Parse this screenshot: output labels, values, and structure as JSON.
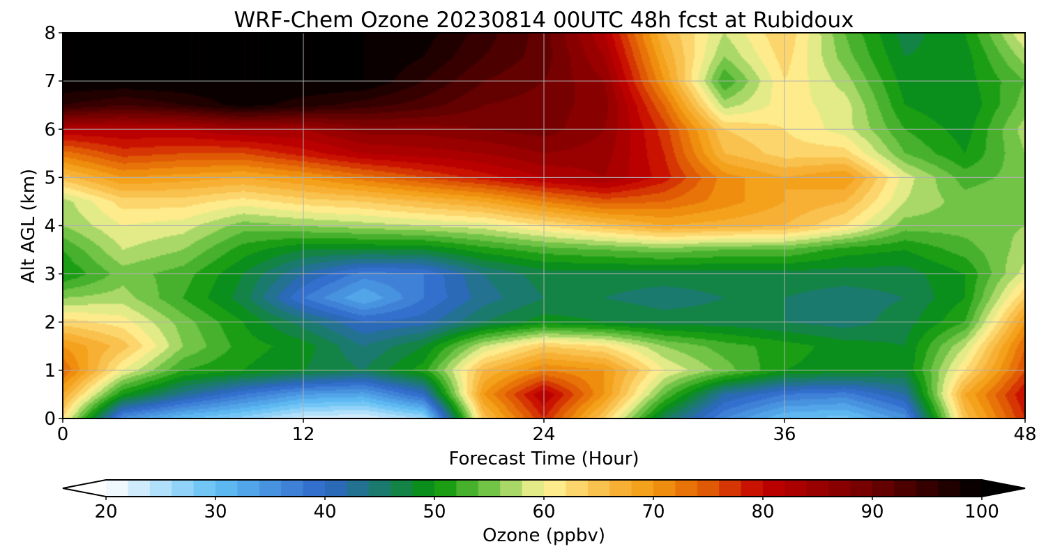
{
  "chart_data": {
    "type": "heatmap",
    "title": "WRF-Chem Ozone  20230814 00UTC 48h fcst at Rubidoux",
    "xlabel": "Forecast Time (Hour)",
    "ylabel": "Alt AGL (km)",
    "xlim": [
      0,
      48
    ],
    "ylim": [
      0,
      8
    ],
    "xticks": [
      0,
      12,
      24,
      36,
      48
    ],
    "yticks": [
      0,
      1,
      2,
      3,
      4,
      5,
      6,
      7,
      8
    ],
    "grid": true,
    "colorbar": {
      "label": "Ozone  (ppbv)",
      "range": [
        20,
        100
      ],
      "ticks": [
        20,
        30,
        40,
        50,
        60,
        70,
        80,
        90,
        100
      ],
      "extend": "both",
      "stops": [
        {
          "v": 20,
          "c": "#ffffff"
        },
        {
          "v": 30,
          "c": "#62c0f5"
        },
        {
          "v": 40,
          "c": "#2e66c8"
        },
        {
          "v": 45,
          "c": "#1b7a6e"
        },
        {
          "v": 50,
          "c": "#079407"
        },
        {
          "v": 55,
          "c": "#72c447"
        },
        {
          "v": 60,
          "c": "#fff59a"
        },
        {
          "v": 66,
          "c": "#f8b73e"
        },
        {
          "v": 70,
          "c": "#f39a10"
        },
        {
          "v": 75,
          "c": "#e05a05"
        },
        {
          "v": 80,
          "c": "#c40000"
        },
        {
          "v": 90,
          "c": "#6e0000"
        },
        {
          "v": 100,
          "c": "#000000"
        }
      ],
      "under_color": "#ffffff",
      "over_color": "#000000"
    },
    "x": [
      0,
      3,
      6,
      9,
      12,
      15,
      18,
      21,
      24,
      27,
      30,
      33,
      36,
      39,
      42,
      45,
      48
    ],
    "y": [
      0,
      0.5,
      1,
      1.5,
      2,
      2.5,
      3,
      3.5,
      4,
      4.5,
      5,
      5.5,
      6,
      6.5,
      7,
      7.5,
      8
    ],
    "z": [
      [
        62,
        35,
        30,
        27,
        23,
        22,
        26,
        65,
        78,
        64,
        46,
        36,
        30,
        29,
        35,
        65,
        78
      ],
      [
        68,
        50,
        43,
        38,
        34,
        33,
        40,
        70,
        82,
        70,
        54,
        42,
        38,
        37,
        42,
        68,
        80
      ],
      [
        74,
        60,
        52,
        50,
        48,
        46,
        51,
        66,
        72,
        70,
        60,
        55,
        50,
        49,
        48,
        62,
        76
      ],
      [
        70,
        65,
        56,
        51,
        49,
        44,
        48,
        58,
        64,
        62,
        56,
        53,
        51,
        49,
        48,
        58,
        74
      ],
      [
        63,
        61,
        55,
        50,
        45,
        40,
        41,
        46,
        49,
        48,
        47,
        47,
        46,
        45,
        47,
        52,
        70
      ],
      [
        56,
        57,
        52,
        47,
        38,
        32,
        38,
        43,
        46,
        46,
        45,
        46,
        46,
        45,
        46,
        50,
        64
      ],
      [
        50,
        55,
        53,
        48,
        42,
        37,
        38,
        44,
        47,
        47,
        47,
        47,
        47,
        47,
        47,
        50,
        59
      ],
      [
        52,
        58,
        56,
        51,
        48,
        48,
        48,
        51,
        53,
        54,
        55,
        54,
        54,
        51,
        50,
        53,
        57
      ],
      [
        56,
        60,
        59,
        55,
        56,
        57,
        58,
        59,
        62,
        65,
        68,
        67,
        66,
        62,
        55,
        55,
        56
      ],
      [
        57,
        63,
        63,
        61,
        63,
        64,
        66,
        68,
        72,
        75,
        74,
        71,
        68,
        66,
        58,
        55,
        56
      ],
      [
        65,
        70,
        69,
        68,
        70,
        73,
        76,
        79,
        82,
        84,
        79,
        71,
        68,
        70,
        59,
        53,
        55
      ],
      [
        73,
        77,
        76,
        76,
        79,
        82,
        83,
        84,
        86,
        85,
        78,
        66,
        63,
        63,
        54,
        50,
        56
      ],
      [
        82,
        82,
        82,
        84,
        84,
        87,
        87,
        88,
        89,
        86,
        77,
        64,
        62,
        59,
        52,
        49,
        57
      ],
      [
        96,
        94,
        96,
        99,
        97,
        95,
        93,
        90,
        89,
        87,
        74,
        57,
        61,
        59,
        50,
        48,
        55
      ],
      [
        100,
        100,
        100,
        100,
        100,
        100,
        96,
        92,
        90,
        86,
        70,
        52,
        62,
        57,
        49,
        49,
        54
      ],
      [
        100,
        100,
        100,
        100,
        100,
        100,
        98,
        94,
        91,
        84,
        68,
        56,
        63,
        55,
        48,
        49,
        57
      ],
      [
        100,
        100,
        100,
        100,
        100,
        100,
        99,
        95,
        91,
        82,
        66,
        58,
        64,
        54,
        47,
        50,
        60
      ]
    ]
  }
}
